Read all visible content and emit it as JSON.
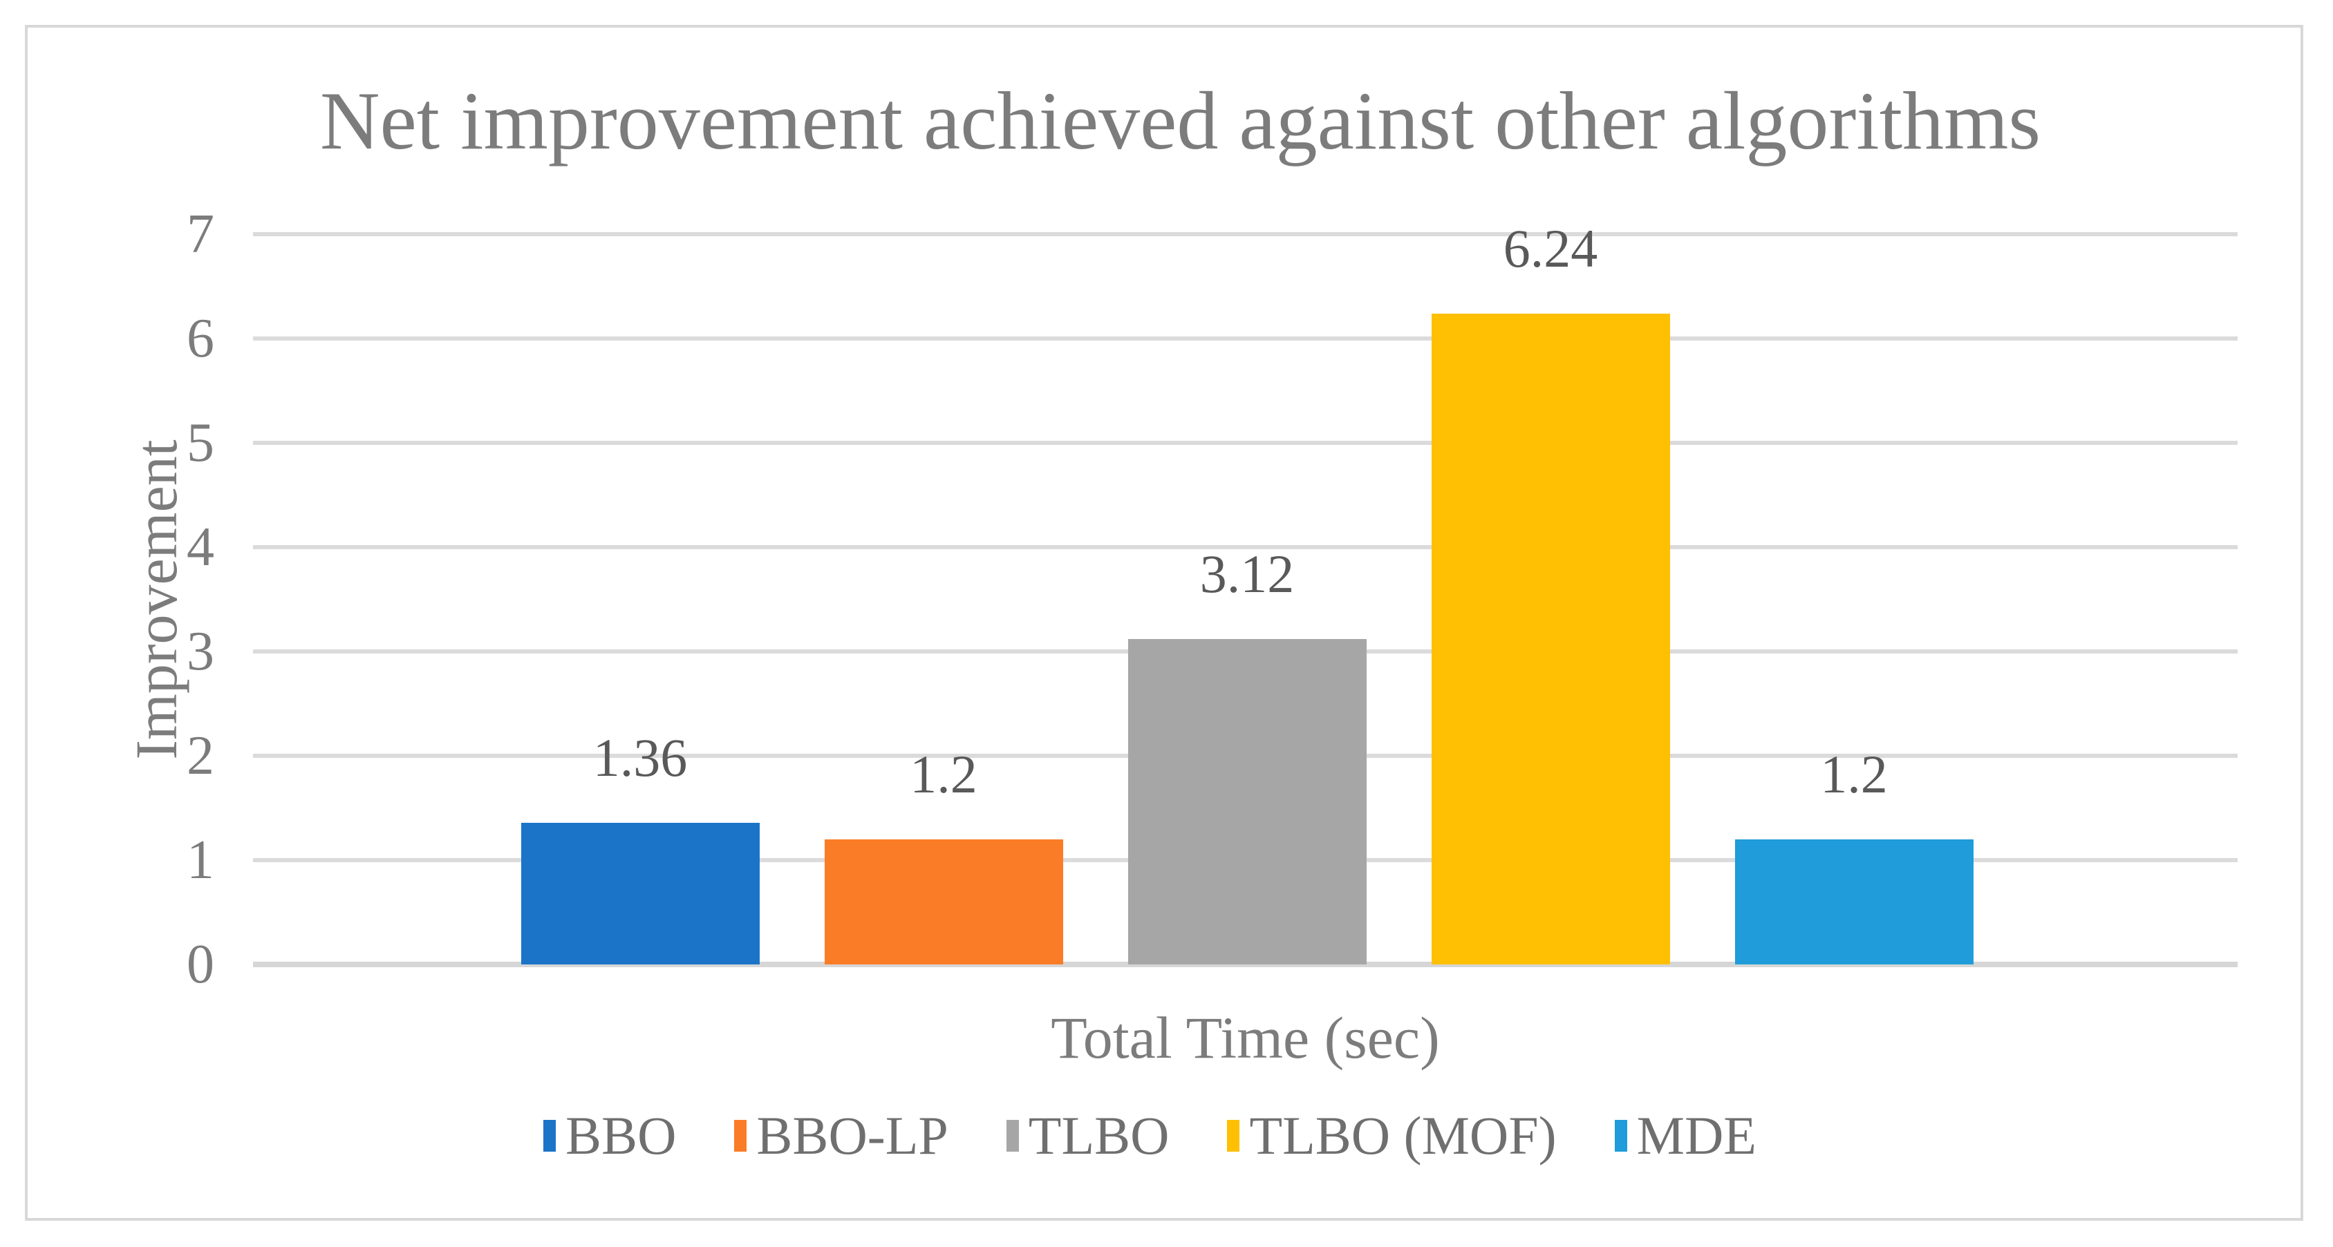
{
  "chart_data": {
    "type": "bar",
    "title": "Net improvement achieved against other algorithms",
    "categories": [
      "BBO",
      "BBO-LP",
      "TLBO",
      "TLBO (MOF)",
      "MDE"
    ],
    "values": [
      1.36,
      1.2,
      3.12,
      6.24,
      1.2
    ],
    "value_labels": [
      "1.36",
      "1.2",
      "3.12",
      "6.24",
      "1.2"
    ],
    "series_colors": [
      "#1B74C8",
      "#FB7C26",
      "#A6A6A6",
      "#FFC003",
      "#1F9CD9"
    ],
    "xlabel": "Total Time (sec)",
    "ylabel": "Improvement",
    "ylim": [
      0,
      7
    ],
    "yticks": [
      0,
      1,
      2,
      3,
      4,
      5,
      6,
      7
    ],
    "grid": true,
    "legend_position": "bottom",
    "legend": [
      "BBO",
      "BBO-LP",
      "TLBO",
      "TLBO (MOF)",
      "MDE"
    ]
  },
  "styles": {
    "background": "#FFFFFF",
    "frame_border_color": "#D8D8D8",
    "grid_color": "#DBDBDB",
    "axis_line_color": "#D6D6D6",
    "title_color": "#7C7C7C",
    "tick_color": "#7C7C7C",
    "data_label_color": "#595959",
    "legend_text_color": "#6F6F6F"
  }
}
